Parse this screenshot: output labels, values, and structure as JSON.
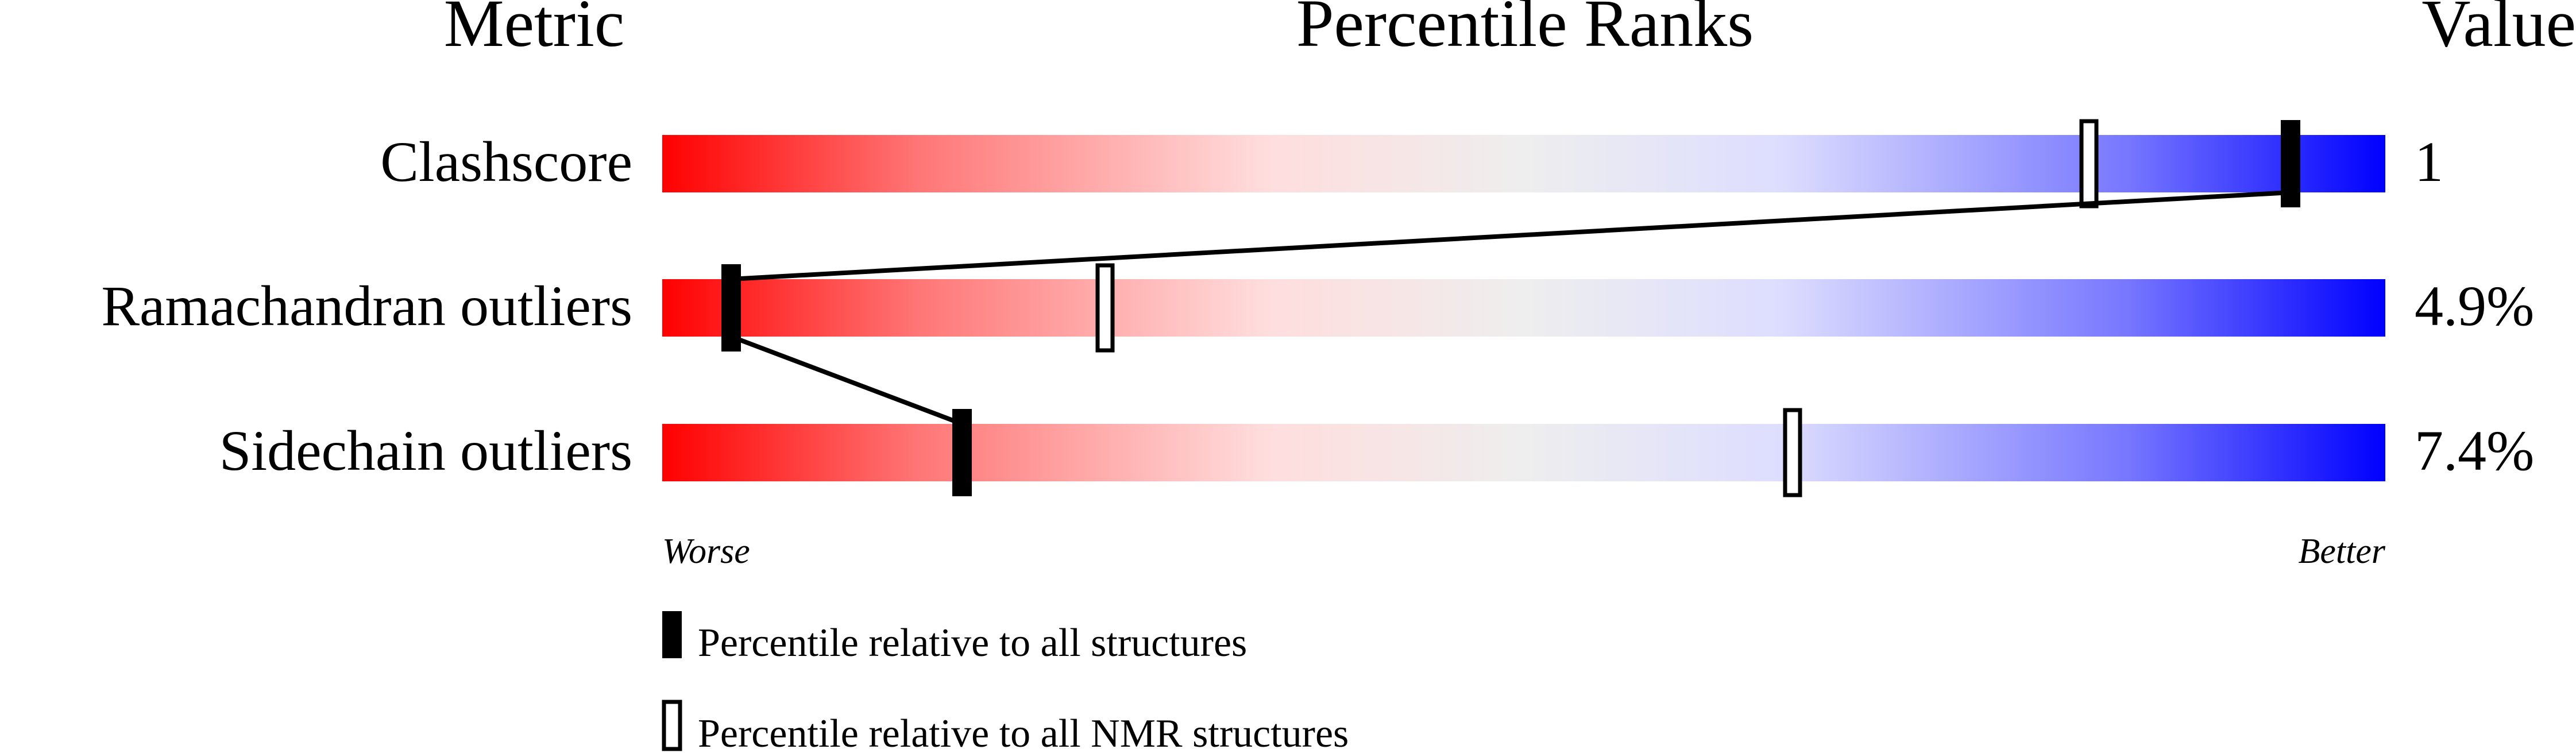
{
  "chart_data": {
    "type": "percentile-bar",
    "headers": {
      "metric": "Metric",
      "ranks": "Percentile Ranks",
      "value": "Value"
    },
    "xlim": [
      0,
      100
    ],
    "rows": [
      {
        "metric": "Clashscore",
        "value": "1",
        "percentile_all": 94.5,
        "percentile_nmr": 82.8
      },
      {
        "metric": "Ramachandran outliers",
        "value": "4.9%",
        "percentile_all": 4,
        "percentile_nmr": 25.7
      },
      {
        "metric": "Sidechain outliers",
        "value": "7.4%",
        "percentile_all": 17.4,
        "percentile_nmr": 65.6
      }
    ],
    "axis_labels": {
      "left": "Worse",
      "right": "Better"
    },
    "legend": [
      {
        "marker": "filled",
        "label": "Percentile relative to all structures"
      },
      {
        "marker": "hollow",
        "label": "Percentile relative to all NMR structures"
      }
    ],
    "colors": {
      "worse": "#ff0000",
      "mid": "#eeeeee",
      "better": "#0000ff",
      "marker": "#000000"
    }
  }
}
